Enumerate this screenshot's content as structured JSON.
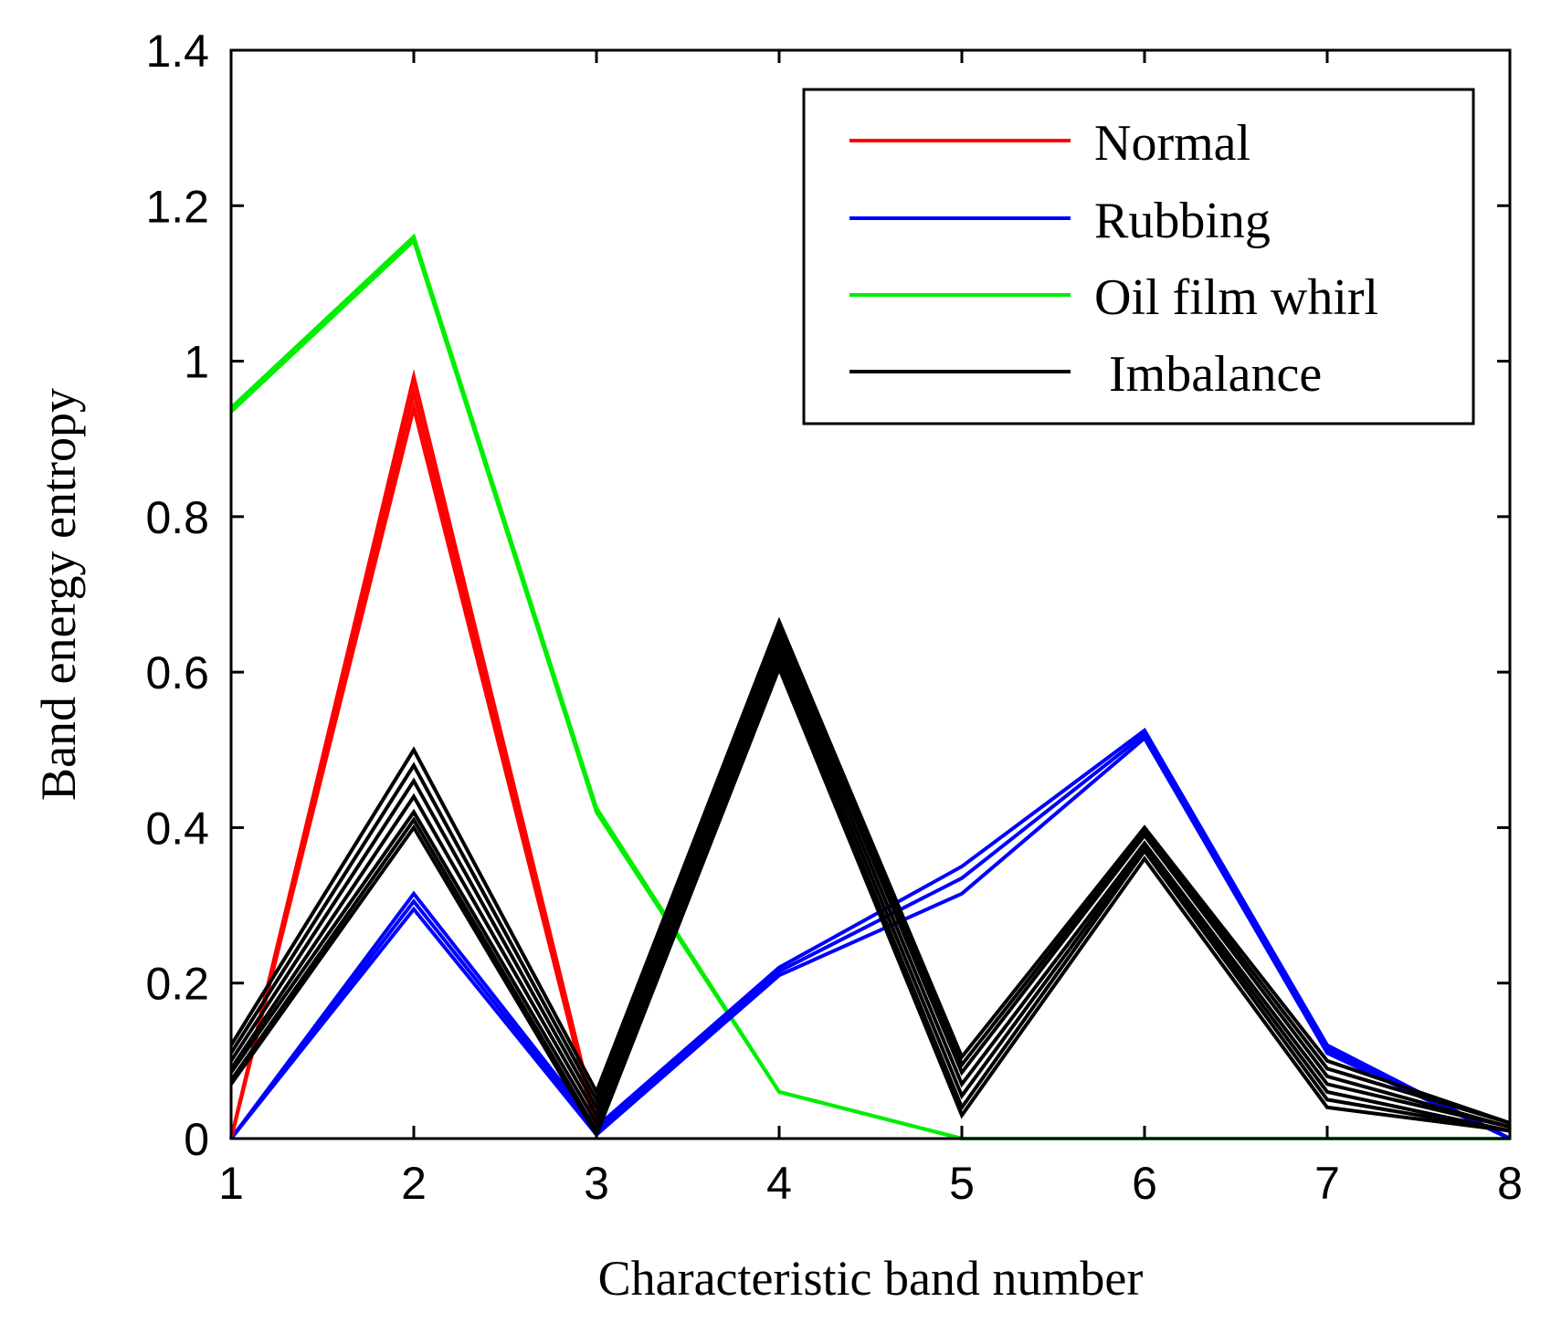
{
  "chart_data": {
    "type": "line",
    "title": "",
    "xlabel": "Characteristic band number",
    "ylabel": "Band energy entropy",
    "xlim": [
      1,
      8
    ],
    "ylim": [
      0,
      1.4
    ],
    "xticks": [
      "1",
      "2",
      "3",
      "4",
      "5",
      "6",
      "7",
      "8"
    ],
    "yticks": [
      "0",
      "0.2",
      "0.4",
      "0.6",
      "0.8",
      "1",
      "1.2",
      "1.4"
    ],
    "legend_position": "top-right",
    "x": [
      1,
      2,
      3,
      4,
      5,
      6,
      7,
      8
    ],
    "series": [
      {
        "name": "Normal",
        "color": "#ff0000",
        "curves": [
          [
            0.0,
            0.98,
            0.02,
            null,
            null,
            null,
            null,
            null
          ],
          [
            0.0,
            0.96,
            0.01,
            null,
            null,
            null,
            null,
            null
          ],
          [
            0.0,
            0.94,
            0.01,
            null,
            null,
            null,
            null,
            null
          ]
        ]
      },
      {
        "name": "Rubbing",
        "color": "#0000ff",
        "curves": [
          [
            0.0,
            0.315,
            0.015,
            0.22,
            0.35,
            0.525,
            0.12,
            0.0
          ],
          [
            0.0,
            0.305,
            0.01,
            0.215,
            0.335,
            0.52,
            0.115,
            0.0
          ],
          [
            0.0,
            0.295,
            0.005,
            0.21,
            0.315,
            0.515,
            0.11,
            0.0
          ]
        ]
      },
      {
        "name": "Oil film whirl",
        "color": "#00ee00",
        "curves": [
          [
            0.94,
            1.16,
            0.425,
            0.06,
            0.0,
            0.0,
            0.0,
            0.0
          ],
          [
            0.935,
            1.155,
            0.42,
            0.06,
            0.0,
            0.0,
            0.0,
            0.0
          ]
        ]
      },
      {
        "name": "Imbalance",
        "color": "#000000",
        "curves": [
          [
            0.12,
            0.5,
            0.06,
            0.665,
            0.105,
            0.4,
            0.1,
            0.02
          ],
          [
            0.11,
            0.48,
            0.05,
            0.655,
            0.095,
            0.395,
            0.09,
            0.02
          ],
          [
            0.1,
            0.46,
            0.04,
            0.645,
            0.085,
            0.39,
            0.08,
            0.015
          ],
          [
            0.09,
            0.44,
            0.03,
            0.635,
            0.07,
            0.38,
            0.07,
            0.015
          ],
          [
            0.085,
            0.42,
            0.02,
            0.625,
            0.055,
            0.375,
            0.06,
            0.01
          ],
          [
            0.075,
            0.41,
            0.01,
            0.615,
            0.04,
            0.37,
            0.05,
            0.01
          ],
          [
            0.07,
            0.4,
            0.005,
            0.605,
            0.03,
            0.36,
            0.04,
            0.01
          ]
        ]
      }
    ]
  }
}
